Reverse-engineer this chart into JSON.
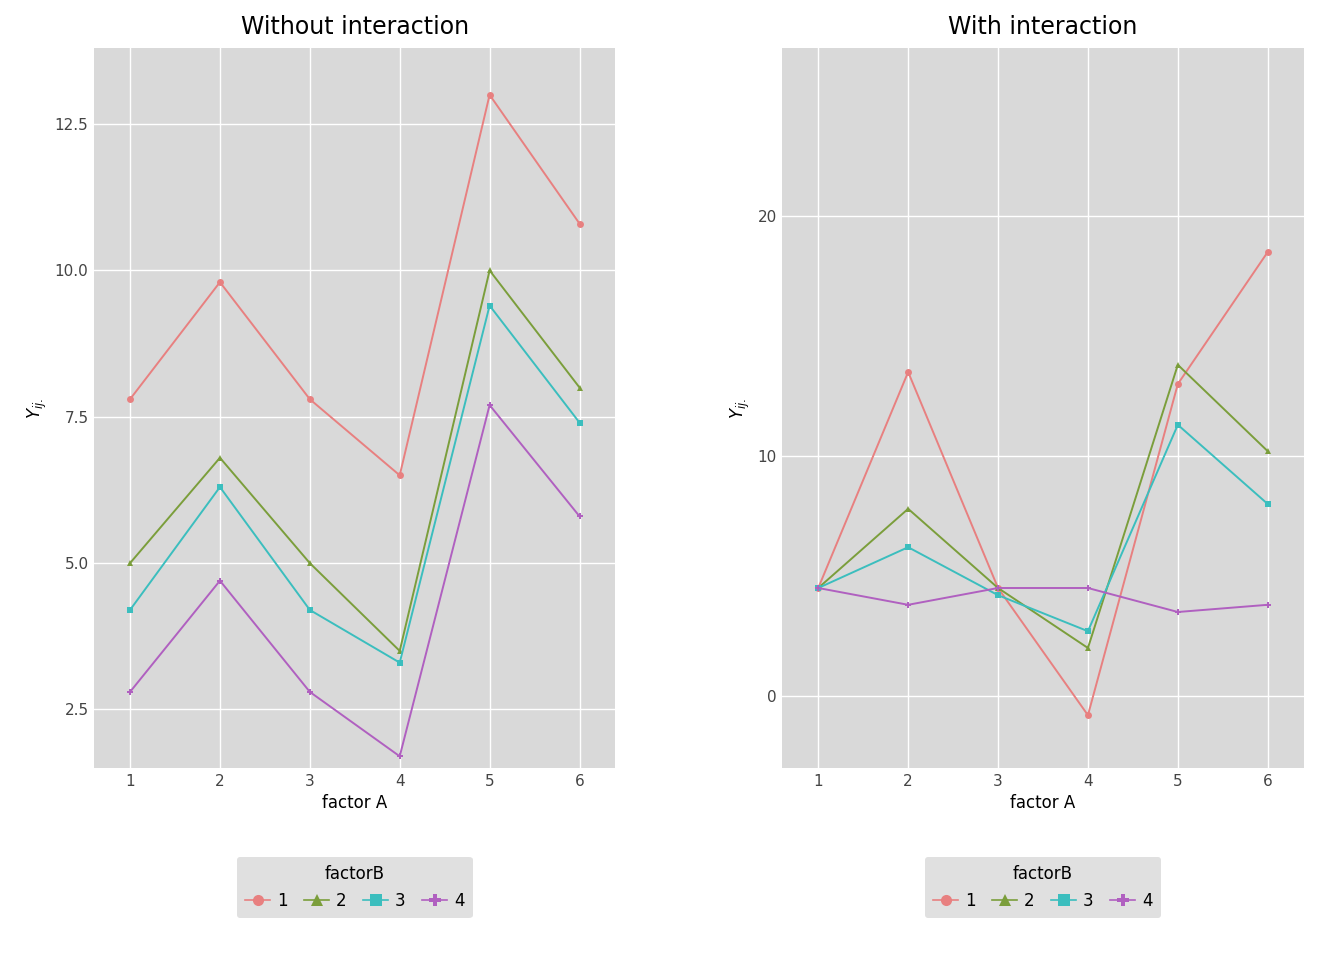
{
  "left_title": "Without interaction",
  "right_title": "With interaction",
  "xlabel": "factor A",
  "ylabel": "$Y_{ij.}$",
  "x": [
    1,
    2,
    3,
    4,
    5,
    6
  ],
  "left_series": {
    "1": [
      7.8,
      9.8,
      7.8,
      6.5,
      13.0,
      10.8
    ],
    "2": [
      5.0,
      6.8,
      5.0,
      3.5,
      10.0,
      8.0
    ],
    "3": [
      4.2,
      6.3,
      4.2,
      3.3,
      9.4,
      7.4
    ],
    "4": [
      2.8,
      4.7,
      2.8,
      1.7,
      7.7,
      5.8
    ]
  },
  "right_series": {
    "1": [
      4.5,
      13.5,
      4.5,
      -0.8,
      13.0,
      18.5
    ],
    "2": [
      4.5,
      7.8,
      4.5,
      2.0,
      13.8,
      10.2
    ],
    "3": [
      4.5,
      6.2,
      4.2,
      2.7,
      11.3,
      8.0
    ],
    "4": [
      4.5,
      3.8,
      4.5,
      4.5,
      3.5,
      3.8
    ]
  },
  "colors": {
    "1": "#E88080",
    "2": "#7B9E3B",
    "3": "#3BBEBE",
    "4": "#B060C0"
  },
  "markers": {
    "1": "o",
    "2": "^",
    "3": "s",
    "4": "P"
  },
  "background_color": "#D9D9D9",
  "grid_color": "#FFFFFF",
  "fig_background": "#FFFFFF",
  "legend_label": "factorB",
  "left_ylim": [
    1.5,
    13.8
  ],
  "left_yticks": [
    2.5,
    5.0,
    7.5,
    10.0,
    12.5
  ],
  "right_ylim": [
    -3,
    27
  ],
  "right_yticks": [
    0,
    10,
    20
  ],
  "title_fontsize": 17,
  "axis_label_fontsize": 12,
  "tick_fontsize": 11,
  "legend_fontsize": 12,
  "line_width": 1.4,
  "markersize": 5
}
